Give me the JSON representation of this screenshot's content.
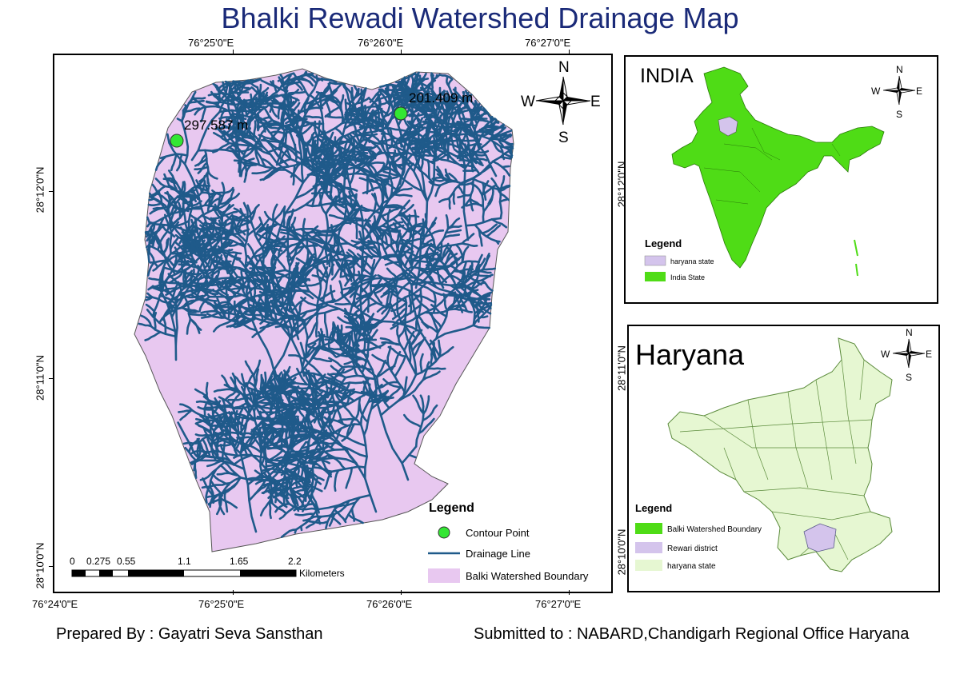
{
  "title": "Bhalki Rewadi Watershed Drainage Map",
  "main_map": {
    "top_labels": [
      "76°25'0\"E",
      "76°26'0\"E",
      "76°27'0\"E"
    ],
    "bottom_labels": [
      "76°24'0\"E",
      "76°25'0\"E",
      "76°26'0\"E",
      "76°27'0\"E"
    ],
    "left_labels": [
      "28°12'0\"N",
      "28°11'0\"N",
      "28°10'0\"N"
    ],
    "contour_points": [
      {
        "label": "297.587 m"
      },
      {
        "label": "201.409 m"
      }
    ],
    "north_arrow": {
      "n": "N",
      "s": "S",
      "e": "E",
      "w": "W"
    },
    "scale_bar": {
      "ticks": [
        "0",
        "0.275",
        "0.55",
        "1.1",
        "1.65",
        "2.2"
      ],
      "unit": "Kilometers"
    },
    "legend": {
      "title": "Legend",
      "items": [
        "Contour Point",
        "Drainage Line",
        "Balki Watershed Boundary"
      ]
    }
  },
  "india_map": {
    "title": "INDIA",
    "north_arrow": {
      "n": "N",
      "s": "S",
      "e": "E",
      "w": "W"
    },
    "legend": {
      "title": "Legend",
      "items": [
        "haryana state",
        "India State"
      ]
    },
    "right_labels": [
      "28°12'0\"N"
    ]
  },
  "haryana_map": {
    "title": "Haryana",
    "north_arrow": {
      "n": "N",
      "s": "S",
      "e": "E",
      "w": "W"
    },
    "legend": {
      "title": "Legend",
      "items": [
        "Balki Watershed Boundary",
        "Rewari district",
        "haryana state"
      ]
    },
    "right_labels": [
      "28°11'0\"N",
      "28°10'0\"N"
    ]
  },
  "footer": {
    "prepared_by": "Prepared By : Gayatri Seva Sansthan",
    "submitted_to": "Submitted to : NABARD,Chandigarh Regional Office Haryana"
  },
  "colors": {
    "watershed_fill": "#e8c8f0",
    "drainage": "#1f5a8a",
    "contour_point": "#33e633",
    "india_fill": "#4fdc16",
    "haryana_fill": "#e6f7d2",
    "rewari_fill": "#d4c4ec",
    "title": "#1a2a78"
  }
}
